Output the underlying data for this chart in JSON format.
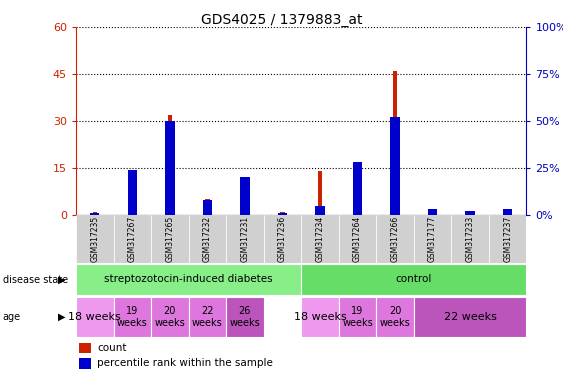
{
  "title": "GDS4025 / 1379883_at",
  "samples": [
    "GSM317235",
    "GSM317267",
    "GSM317265",
    "GSM317232",
    "GSM317231",
    "GSM317236",
    "GSM317234",
    "GSM317264",
    "GSM317266",
    "GSM317177",
    "GSM317233",
    "GSM317237"
  ],
  "counts": [
    1,
    12,
    32,
    5,
    8,
    1,
    14,
    1,
    46,
    2,
    1,
    1
  ],
  "percentiles": [
    1,
    24,
    50,
    8,
    20,
    1,
    5,
    28,
    52,
    3,
    2,
    3
  ],
  "ylim_left": [
    0,
    60
  ],
  "ylim_right": [
    0,
    100
  ],
  "yticks_left": [
    0,
    15,
    30,
    45,
    60
  ],
  "yticks_right": [
    0,
    25,
    50,
    75,
    100
  ],
  "ytick_labels_left": [
    "0",
    "15",
    "30",
    "45",
    "60"
  ],
  "ytick_labels_right": [
    "0%",
    "25%",
    "50%",
    "75%",
    "100%"
  ],
  "bar_color_red": "#cc2200",
  "bar_color_blue": "#0000cc",
  "left_axis_color": "#cc2200",
  "right_axis_color": "#0000bb",
  "disease_groups": [
    {
      "label": "streptozotocin-induced diabetes",
      "start": 0,
      "end": 6,
      "color": "#88ee88"
    },
    {
      "label": "control",
      "start": 6,
      "end": 12,
      "color": "#66dd66"
    }
  ],
  "age_groups": [
    {
      "label": "18 weeks",
      "start": 0,
      "end": 1,
      "fontsize": 8
    },
    {
      "label": "19\nweeks",
      "start": 1,
      "end": 2,
      "fontsize": 7
    },
    {
      "label": "20\nweeks",
      "start": 2,
      "end": 3,
      "fontsize": 7
    },
    {
      "label": "22\nweeks",
      "start": 3,
      "end": 4,
      "fontsize": 7
    },
    {
      "label": "26\nweeks",
      "start": 4,
      "end": 5,
      "fontsize": 7
    },
    {
      "label": "18 weeks",
      "start": 6,
      "end": 7,
      "fontsize": 8
    },
    {
      "label": "19\nweeks",
      "start": 7,
      "end": 8,
      "fontsize": 7
    },
    {
      "label": "20\nweeks",
      "start": 8,
      "end": 9,
      "fontsize": 7
    },
    {
      "label": "22 weeks",
      "start": 9,
      "end": 12,
      "fontsize": 8
    }
  ],
  "age_color_light": "#dd88dd",
  "age_color_dark": "#bb44bb",
  "age_color_darker": "#aa22aa"
}
